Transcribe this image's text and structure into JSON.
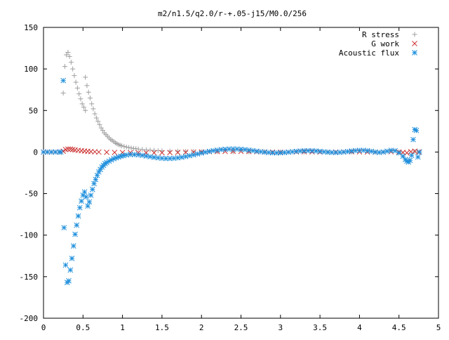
{
  "chart_data": {
    "type": "scatter",
    "title": "m2/n1.5/q2.0/r-+.05-j15/M0.0/256",
    "xlabel": "",
    "ylabel": "",
    "xlim": [
      0,
      5
    ],
    "ylim": [
      -200,
      150
    ],
    "xticks": [
      0,
      0.5,
      1,
      1.5,
      2,
      2.5,
      3,
      3.5,
      4,
      4.5,
      5
    ],
    "yticks": [
      -200,
      -150,
      -100,
      -50,
      0,
      50,
      100,
      150
    ],
    "xtick_labels": [
      "0",
      "0.5",
      "1",
      "1.5",
      "2",
      "2.5",
      "3",
      "3.5",
      "4",
      "4.5",
      "5"
    ],
    "ytick_labels": [
      "-200",
      "-150",
      "-100",
      "-50",
      "0",
      "50",
      "100",
      "150"
    ],
    "grid": false,
    "legend_position": "top-right",
    "series": [
      {
        "name": "R stress",
        "marker": "plus",
        "color": "#a0a0a0",
        "points": [
          [
            0.25,
            71
          ],
          [
            0.27,
            103
          ],
          [
            0.29,
            117
          ],
          [
            0.31,
            120
          ],
          [
            0.33,
            115
          ],
          [
            0.35,
            108
          ],
          [
            0.37,
            100
          ],
          [
            0.39,
            92
          ],
          [
            0.41,
            84
          ],
          [
            0.43,
            77
          ],
          [
            0.45,
            70
          ],
          [
            0.47,
            64
          ],
          [
            0.49,
            58
          ],
          [
            0.51,
            54
          ],
          [
            0.53,
            50
          ],
          [
            0.53,
            90
          ],
          [
            0.55,
            80
          ],
          [
            0.57,
            72
          ],
          [
            0.59,
            65
          ],
          [
            0.61,
            58
          ],
          [
            0.63,
            52
          ],
          [
            0.65,
            46
          ],
          [
            0.67,
            41
          ],
          [
            0.69,
            37
          ],
          [
            0.71,
            33
          ],
          [
            0.73,
            29
          ],
          [
            0.75,
            26
          ],
          [
            0.77,
            23
          ],
          [
            0.79,
            21
          ],
          [
            0.81,
            19
          ],
          [
            0.83,
            17
          ],
          [
            0.85,
            15
          ],
          [
            0.87,
            14
          ],
          [
            0.89,
            12.5
          ],
          [
            0.91,
            11
          ],
          [
            0.93,
            10
          ],
          [
            0.95,
            9
          ],
          [
            0.97,
            8.2
          ],
          [
            0.99,
            7.5
          ],
          [
            1.02,
            6.8
          ],
          [
            1.05,
            6
          ],
          [
            1.08,
            5.4
          ],
          [
            1.11,
            4.9
          ],
          [
            1.14,
            4.4
          ],
          [
            1.17,
            4
          ],
          [
            1.2,
            3.6
          ],
          [
            1.25,
            3.1
          ],
          [
            1.3,
            2.7
          ],
          [
            1.35,
            2.3
          ],
          [
            1.4,
            2
          ],
          [
            1.45,
            1.7
          ],
          [
            1.5,
            1.5
          ],
          [
            1.6,
            1.2
          ],
          [
            1.7,
            1
          ],
          [
            1.8,
            0.8
          ],
          [
            1.9,
            0.6
          ],
          [
            2.0,
            0.5
          ],
          [
            2.2,
            0.4
          ],
          [
            2.4,
            0.3
          ],
          [
            2.6,
            0.2
          ],
          [
            2.8,
            0.2
          ],
          [
            3.0,
            0.1
          ],
          [
            3.3,
            0.1
          ],
          [
            3.6,
            0.1
          ],
          [
            3.9,
            0.1
          ],
          [
            4.2,
            0.1
          ],
          [
            4.5,
            0.2
          ],
          [
            4.7,
            0.5
          ],
          [
            4.76,
            0
          ]
        ]
      },
      {
        "name": "G work",
        "marker": "cross",
        "color": "#cc3333",
        "points": [
          [
            0.0,
            0
          ],
          [
            0.05,
            0
          ],
          [
            0.1,
            0
          ],
          [
            0.15,
            0
          ],
          [
            0.2,
            0
          ],
          [
            0.25,
            1
          ],
          [
            0.28,
            3
          ],
          [
            0.31,
            3.5
          ],
          [
            0.34,
            3.5
          ],
          [
            0.37,
            3
          ],
          [
            0.4,
            2.5
          ],
          [
            0.44,
            2
          ],
          [
            0.48,
            1.6
          ],
          [
            0.52,
            1.2
          ],
          [
            0.56,
            0.9
          ],
          [
            0.6,
            0.6
          ],
          [
            0.65,
            0.3
          ],
          [
            0.7,
            0
          ],
          [
            0.8,
            -0.3
          ],
          [
            0.9,
            -0.5
          ],
          [
            1.0,
            -0.6
          ],
          [
            1.1,
            -0.7
          ],
          [
            1.2,
            -0.8
          ],
          [
            1.3,
            -0.9
          ],
          [
            1.4,
            -0.9
          ],
          [
            1.5,
            -0.8
          ],
          [
            1.6,
            -0.6
          ],
          [
            1.7,
            -0.4
          ],
          [
            1.8,
            -0.2
          ],
          [
            1.9,
            0
          ],
          [
            2.0,
            0.2
          ],
          [
            2.1,
            0.4
          ],
          [
            2.2,
            0.6
          ],
          [
            2.3,
            0.8
          ],
          [
            2.4,
            0.9
          ],
          [
            2.5,
            0.8
          ],
          [
            2.6,
            0.6
          ],
          [
            2.7,
            0.4
          ],
          [
            2.8,
            0.2
          ],
          [
            2.9,
            0
          ],
          [
            3.0,
            -0.1
          ],
          [
            3.1,
            0
          ],
          [
            3.2,
            0.2
          ],
          [
            3.3,
            0.3
          ],
          [
            3.4,
            0.2
          ],
          [
            3.5,
            0
          ],
          [
            3.6,
            -0.1
          ],
          [
            3.7,
            0
          ],
          [
            3.8,
            0.2
          ],
          [
            3.9,
            0.3
          ],
          [
            4.0,
            0.2
          ],
          [
            4.1,
            0
          ],
          [
            4.2,
            -0.2
          ],
          [
            4.3,
            0
          ],
          [
            4.4,
            0.3
          ],
          [
            4.5,
            0
          ],
          [
            4.55,
            -0.5
          ],
          [
            4.6,
            -1
          ],
          [
            4.65,
            0.5
          ],
          [
            4.7,
            1
          ],
          [
            4.75,
            0
          ]
        ]
      },
      {
        "name": "Acoustic flux",
        "marker": "star",
        "color": "#1f8fdc",
        "points": [
          [
            0.0,
            0
          ],
          [
            0.05,
            0
          ],
          [
            0.1,
            0
          ],
          [
            0.15,
            0
          ],
          [
            0.2,
            0
          ],
          [
            0.22,
            0
          ],
          [
            0.25,
            86
          ],
          [
            0.26,
            -91
          ],
          [
            0.28,
            -136
          ],
          [
            0.3,
            -157
          ],
          [
            0.32,
            -155
          ],
          [
            0.34,
            -142
          ],
          [
            0.36,
            -128
          ],
          [
            0.38,
            -113
          ],
          [
            0.4,
            -99
          ],
          [
            0.42,
            -88
          ],
          [
            0.44,
            -77
          ],
          [
            0.46,
            -67
          ],
          [
            0.48,
            -59
          ],
          [
            0.5,
            -52
          ],
          [
            0.52,
            -48
          ],
          [
            0.54,
            -54
          ],
          [
            0.56,
            -65
          ],
          [
            0.58,
            -60
          ],
          [
            0.6,
            -52
          ],
          [
            0.62,
            -45
          ],
          [
            0.64,
            -38
          ],
          [
            0.66,
            -33
          ],
          [
            0.68,
            -28
          ],
          [
            0.7,
            -24
          ],
          [
            0.72,
            -21
          ],
          [
            0.74,
            -18
          ],
          [
            0.76,
            -16
          ],
          [
            0.78,
            -14
          ],
          [
            0.8,
            -12.5
          ],
          [
            0.83,
            -11
          ],
          [
            0.86,
            -9.5
          ],
          [
            0.89,
            -8
          ],
          [
            0.92,
            -7
          ],
          [
            0.95,
            -6
          ],
          [
            0.98,
            -5
          ],
          [
            1.01,
            -4.3
          ],
          [
            1.05,
            -3.6
          ],
          [
            1.1,
            -3
          ],
          [
            1.15,
            -3
          ],
          [
            1.2,
            -3.4
          ],
          [
            1.25,
            -4
          ],
          [
            1.3,
            -4.8
          ],
          [
            1.35,
            -5.6
          ],
          [
            1.4,
            -6.4
          ],
          [
            1.45,
            -7
          ],
          [
            1.5,
            -7.5
          ],
          [
            1.55,
            -7.8
          ],
          [
            1.6,
            -7.8
          ],
          [
            1.65,
            -7.5
          ],
          [
            1.7,
            -7
          ],
          [
            1.75,
            -6.3
          ],
          [
            1.8,
            -5.4
          ],
          [
            1.85,
            -4.4
          ],
          [
            1.9,
            -3.4
          ],
          [
            1.95,
            -2.3
          ],
          [
            2.0,
            -1.2
          ],
          [
            2.05,
            -0.2
          ],
          [
            2.1,
            0.8
          ],
          [
            2.15,
            1.6
          ],
          [
            2.2,
            2.3
          ],
          [
            2.25,
            2.9
          ],
          [
            2.3,
            3.3
          ],
          [
            2.35,
            3.6
          ],
          [
            2.4,
            3.7
          ],
          [
            2.45,
            3.6
          ],
          [
            2.5,
            3.3
          ],
          [
            2.55,
            2.9
          ],
          [
            2.6,
            2.3
          ],
          [
            2.65,
            1.7
          ],
          [
            2.7,
            1
          ],
          [
            2.75,
            0.4
          ],
          [
            2.8,
            -0.2
          ],
          [
            2.85,
            -0.6
          ],
          [
            2.9,
            -0.9
          ],
          [
            2.95,
            -1
          ],
          [
            3.0,
            -0.9
          ],
          [
            3.05,
            -0.6
          ],
          [
            3.1,
            -0.2
          ],
          [
            3.15,
            0.3
          ],
          [
            3.2,
            0.8
          ],
          [
            3.25,
            1.2
          ],
          [
            3.3,
            1.5
          ],
          [
            3.35,
            1.6
          ],
          [
            3.4,
            1.5
          ],
          [
            3.45,
            1.2
          ],
          [
            3.5,
            0.8
          ],
          [
            3.55,
            0.3
          ],
          [
            3.6,
            -0.2
          ],
          [
            3.65,
            -0.5
          ],
          [
            3.7,
            -0.6
          ],
          [
            3.75,
            -0.4
          ],
          [
            3.8,
            0
          ],
          [
            3.85,
            0.6
          ],
          [
            3.9,
            1.2
          ],
          [
            3.95,
            1.7
          ],
          [
            4.0,
            2
          ],
          [
            4.05,
            2
          ],
          [
            4.1,
            1.6
          ],
          [
            4.15,
            0.9
          ],
          [
            4.2,
            0
          ],
          [
            4.25,
            -0.5
          ],
          [
            4.3,
            0
          ],
          [
            4.35,
            1
          ],
          [
            4.4,
            2
          ],
          [
            4.45,
            1.5
          ],
          [
            4.5,
            -1
          ],
          [
            4.55,
            -5
          ],
          [
            4.58,
            -9
          ],
          [
            4.6,
            -11
          ],
          [
            4.62,
            -12
          ],
          [
            4.64,
            -10
          ],
          [
            4.66,
            -4
          ],
          [
            4.68,
            15
          ],
          [
            4.7,
            27
          ],
          [
            4.72,
            26
          ],
          [
            4.74,
            -6
          ],
          [
            4.76,
            0
          ]
        ]
      }
    ]
  }
}
